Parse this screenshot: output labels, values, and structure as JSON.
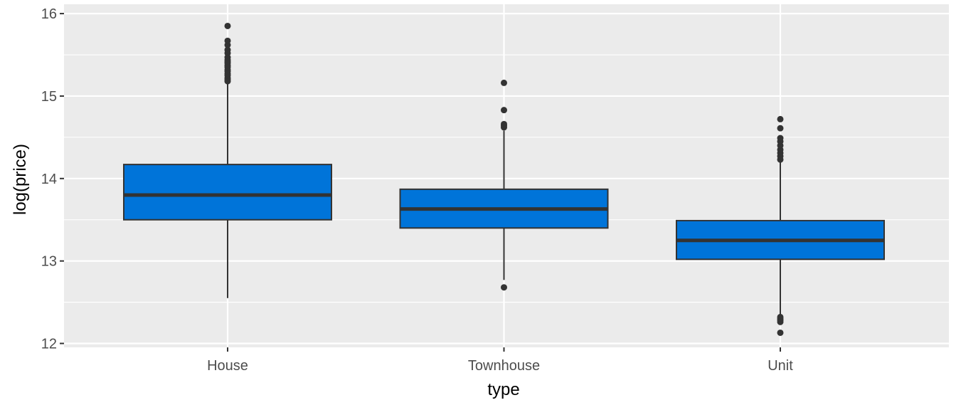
{
  "chart_data": {
    "type": "box",
    "xlabel": "type",
    "ylabel": "log(price)",
    "ylim": [
      12,
      16
    ],
    "y_ticks": [
      12,
      13,
      14,
      15,
      16
    ],
    "categories": [
      "House",
      "Townhouse",
      "Unit"
    ],
    "grid": true,
    "box_fill": "#0074D9",
    "panel_bg": "#EBEBEB",
    "boxes": [
      {
        "category": "House",
        "whisker_low": 12.55,
        "q1": 13.5,
        "median": 13.8,
        "q3": 14.17,
        "whisker_high": 15.15,
        "outliers": [
          15.18,
          15.2,
          15.22,
          15.25,
          15.27,
          15.3,
          15.32,
          15.35,
          15.37,
          15.4,
          15.42,
          15.44,
          15.47,
          15.52,
          15.56,
          15.62,
          15.67,
          15.85
        ]
      },
      {
        "category": "Townhouse",
        "whisker_low": 12.77,
        "q1": 13.4,
        "median": 13.63,
        "q3": 13.87,
        "whisker_high": 14.58,
        "outliers": [
          12.68,
          14.62,
          14.64,
          14.66,
          14.83,
          15.16
        ]
      },
      {
        "category": "Unit",
        "whisker_low": 12.35,
        "q1": 13.02,
        "median": 13.25,
        "q3": 13.49,
        "whisker_high": 14.2,
        "outliers": [
          12.13,
          12.26,
          12.28,
          12.3,
          12.32,
          14.23,
          14.27,
          14.31,
          14.35,
          14.4,
          14.45,
          14.49,
          14.61,
          14.72
        ]
      }
    ]
  }
}
